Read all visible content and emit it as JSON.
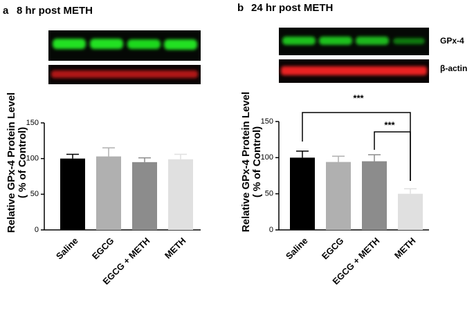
{
  "chart_data": [
    {
      "type": "bar",
      "panel": "a",
      "title": "8 hr post METH",
      "blot_labels": [],
      "ylabel": [
        "Relative GPx-4 Protein Level",
        "( % of Control)"
      ],
      "categories": [
        "Saline",
        "EGCG",
        "EGCG + METH",
        "METH"
      ],
      "values": [
        100,
        103,
        95,
        99
      ],
      "errors": [
        6,
        12,
        6,
        7
      ],
      "colors": [
        "#000000",
        "#b0b0b0",
        "#8c8c8c",
        "#e0e0e0"
      ],
      "ylim": [
        0,
        150
      ],
      "yticks": [
        0,
        50,
        100,
        150
      ],
      "grid": false,
      "annotations": []
    },
    {
      "type": "bar",
      "panel": "b",
      "title": "24 hr post METH",
      "blot_labels": [
        "GPx-4",
        "β-actin"
      ],
      "ylabel": [
        "Relative GPx-4 Protein Level",
        "( % of Control)"
      ],
      "categories": [
        "Saline",
        "EGCG",
        "EGCG + METH",
        "METH"
      ],
      "values": [
        100,
        94,
        95,
        50
      ],
      "errors": [
        9,
        8,
        9,
        7
      ],
      "colors": [
        "#000000",
        "#b0b0b0",
        "#8c8c8c",
        "#e0e0e0"
      ],
      "ylim": [
        0,
        150
      ],
      "yticks": [
        0,
        50,
        100,
        150
      ],
      "grid": false,
      "annotations": [
        "***",
        "***"
      ]
    }
  ]
}
